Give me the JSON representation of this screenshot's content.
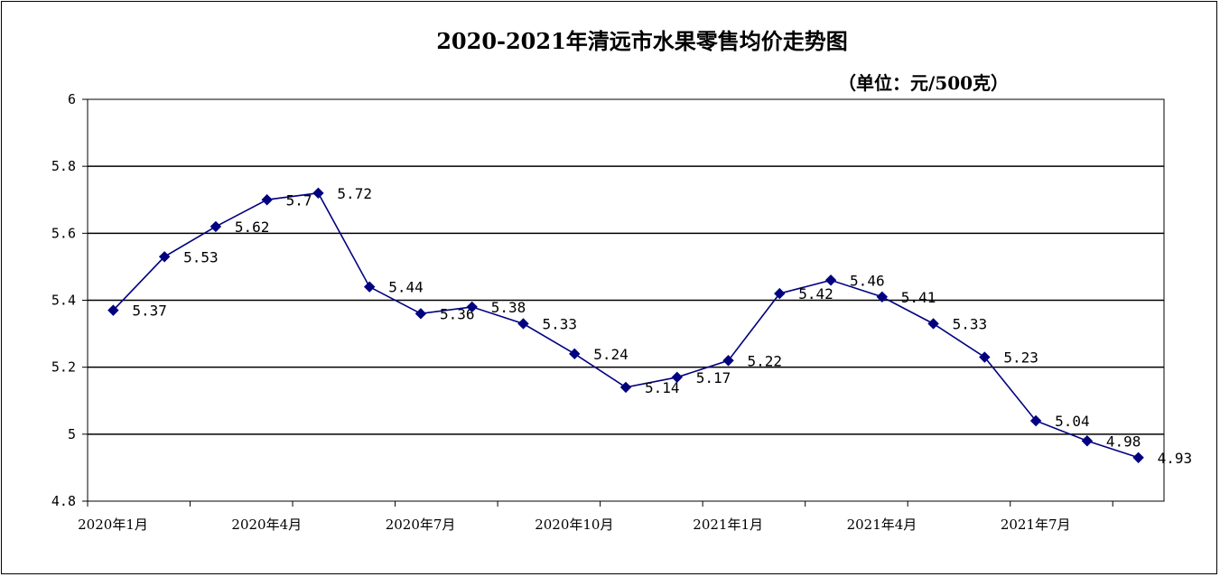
{
  "chart_data": {
    "type": "line",
    "title": "2020-2021年清远市水果零售均价走势图",
    "unit_label": "（单位：元/500克）",
    "xlabel": "",
    "ylabel": "",
    "ylim": [
      4.8,
      6
    ],
    "yticks": [
      "6",
      "5.8",
      "5.6",
      "5.4",
      "5.2",
      "5",
      "4.8"
    ],
    "ytick_values": [
      6,
      5.8,
      5.6,
      5.4,
      5.2,
      5,
      4.8
    ],
    "grid": true,
    "legend": "none",
    "categories": [
      "2020年1月",
      "2020年2月",
      "2020年3月",
      "2020年4月",
      "2020年5月",
      "2020年6月",
      "2020年7月",
      "2020年8月",
      "2020年9月",
      "2020年10月",
      "2020年11月",
      "2020年12月",
      "2021年1月",
      "2021年2月",
      "2021年3月",
      "2021年4月",
      "2021年5月",
      "2021年6月",
      "2021年7月",
      "2021年8月",
      "2021年9月"
    ],
    "visible_xtick_labels": [
      "2020年1月",
      "2020年4月",
      "2020年7月",
      "2020年10月",
      "2021年1月",
      "2021年4月",
      "2021年7月"
    ],
    "values": [
      5.37,
      5.53,
      5.62,
      5.7,
      5.72,
      5.44,
      5.36,
      5.38,
      5.33,
      5.24,
      5.14,
      5.17,
      5.22,
      5.42,
      5.46,
      5.41,
      5.33,
      5.23,
      5.04,
      4.98,
      4.93
    ],
    "data_labels": [
      "5.37",
      "5.53",
      "5.62",
      "5.7",
      "5.72",
      "5.44",
      "5.36",
      "5.38",
      "5.33",
      "5.24",
      "5.14",
      "5.17",
      "5.22",
      "5.42",
      "5.46",
      "5.41",
      "5.33",
      "5.23",
      "5.04",
      "4.98",
      "4.93"
    ],
    "colors": {
      "line": "#000080",
      "marker": "#000080",
      "grid": "#000000"
    }
  }
}
